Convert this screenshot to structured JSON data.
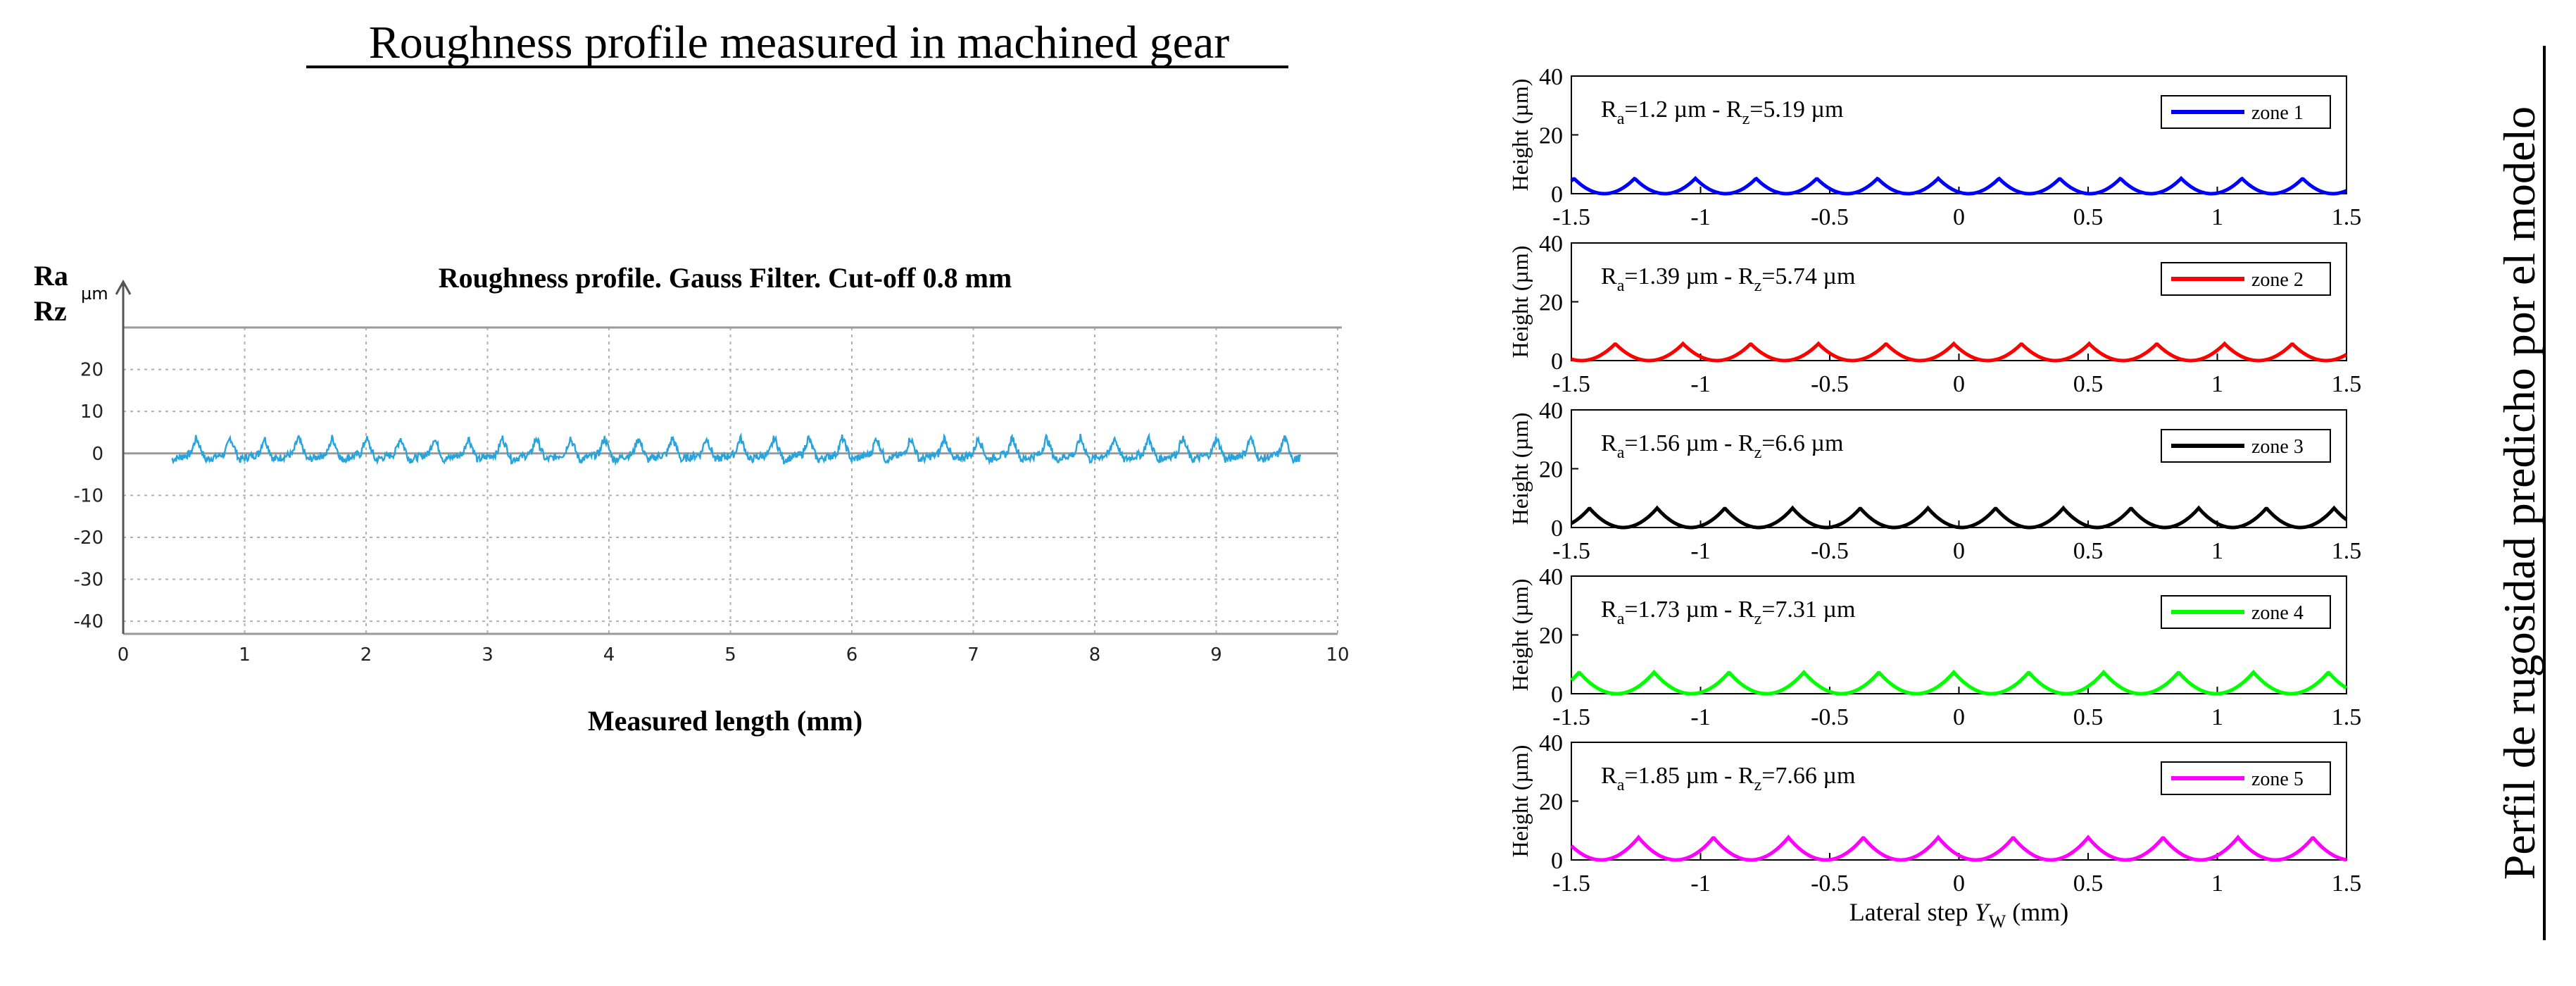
{
  "left_title": "Roughness profile measured in machined gear",
  "right_vertical_title": "Perfil de rugosidad predicho por el modelo",
  "chart_data": [
    {
      "type": "line",
      "title": "Roughness profile. Gauss Filter. Cut-off 0.8 mm",
      "xlabel": "Measured length (mm)",
      "ylabel_lines": [
        "Ra",
        "Rz"
      ],
      "yunit": "µm",
      "xlim": [
        0,
        10
      ],
      "ylim": [
        -43,
        30
      ],
      "xticks": [
        "0",
        "1",
        "2",
        "3",
        "4",
        "5",
        "6",
        "7",
        "8",
        "9",
        "10"
      ],
      "yticks": [
        "20",
        "10",
        "0",
        "-10",
        "-20",
        "-30",
        "-40"
      ],
      "grid": true,
      "color": "#29a3dc",
      "series": [
        {
          "x_range": [
            0.4,
            9.7
          ],
          "period": 0.28,
          "amplitude": [
            -2.5,
            4.5
          ]
        }
      ]
    },
    {
      "type": "line",
      "ylabel": "Height (µm)",
      "xlim": [
        -1.5,
        1.5
      ],
      "ylim": [
        0,
        40
      ],
      "yticks": [
        "0",
        "20",
        "40"
      ],
      "xticks": [
        "-1.5",
        "-1",
        "-0.5",
        "0",
        "0.5",
        "1",
        "1.5"
      ],
      "annotation": {
        "ra": "=1.2 µm - ",
        "rz": "=5.19 µm"
      },
      "legend": "zone 1",
      "legend_position": "top-right",
      "color": "#0000ff",
      "series": [
        {
          "name": "zone 1",
          "peak": 5.19,
          "period": 0.235,
          "phase": -0.08
        }
      ]
    },
    {
      "type": "line",
      "ylabel": "Height (µm)",
      "xlim": [
        -1.5,
        1.5
      ],
      "ylim": [
        0,
        40
      ],
      "yticks": [
        "0",
        "20",
        "40"
      ],
      "xticks": [
        "-1.5",
        "-1",
        "-0.5",
        "0",
        "0.5",
        "1",
        "1.5"
      ],
      "annotation": {
        "ra": "=1.39 µm - ",
        "rz": "=5.74 µm"
      },
      "legend": "zone 2",
      "legend_position": "top-right",
      "color": "#ff0000",
      "series": [
        {
          "name": "zone 2",
          "peak": 5.74,
          "period": 0.262,
          "phase": -0.02
        }
      ]
    },
    {
      "type": "line",
      "ylabel": "Height (µm)",
      "xlim": [
        -1.5,
        1.5
      ],
      "ylim": [
        0,
        40
      ],
      "yticks": [
        "0",
        "20",
        "40"
      ],
      "xticks": [
        "-1.5",
        "-1",
        "-0.5",
        "0",
        "0.5",
        "1",
        "1.5"
      ],
      "annotation": {
        "ra": "=1.56 µm - ",
        "rz": "=6.6 µm"
      },
      "legend": "zone 3",
      "legend_position": "top-right",
      "color": "#000000",
      "series": [
        {
          "name": "zone 3",
          "peak": 6.6,
          "period": 0.262,
          "phase": -0.12
        }
      ]
    },
    {
      "type": "line",
      "ylabel": "Height (µm)",
      "xlim": [
        -1.5,
        1.5
      ],
      "ylim": [
        0,
        40
      ],
      "yticks": [
        "0",
        "20",
        "40"
      ],
      "xticks": [
        "-1.5",
        "-1",
        "-0.5",
        "0",
        "0.5",
        "1",
        "1.5"
      ],
      "annotation": {
        "ra": "=1.73 µm - ",
        "rz": "=7.31 µm"
      },
      "legend": "zone 4",
      "legend_position": "top-right",
      "color": "#00ff00",
      "series": [
        {
          "name": "zone 4",
          "peak": 7.31,
          "period": 0.29,
          "phase": -0.02
        }
      ]
    },
    {
      "type": "line",
      "ylabel": "Height (µm)",
      "xlabel": "Lateral step Y_W (mm)",
      "xlabel_parts": [
        "Lateral step ",
        "Y",
        "W",
        " (mm)"
      ],
      "xlim": [
        -1.5,
        1.5
      ],
      "ylim": [
        0,
        40
      ],
      "yticks": [
        "0",
        "20",
        "40"
      ],
      "xticks": [
        "-1.5",
        "-1",
        "-0.5",
        "0",
        "0.5",
        "1",
        "1.5"
      ],
      "annotation": {
        "ra": "=1.85 µm - ",
        "rz": "=7.66 µm"
      },
      "legend": "zone 5",
      "legend_position": "top-right",
      "color": "#ff00ff",
      "series": [
        {
          "name": "zone 5",
          "peak": 7.66,
          "period": 0.29,
          "phase": -0.08
        }
      ]
    }
  ]
}
